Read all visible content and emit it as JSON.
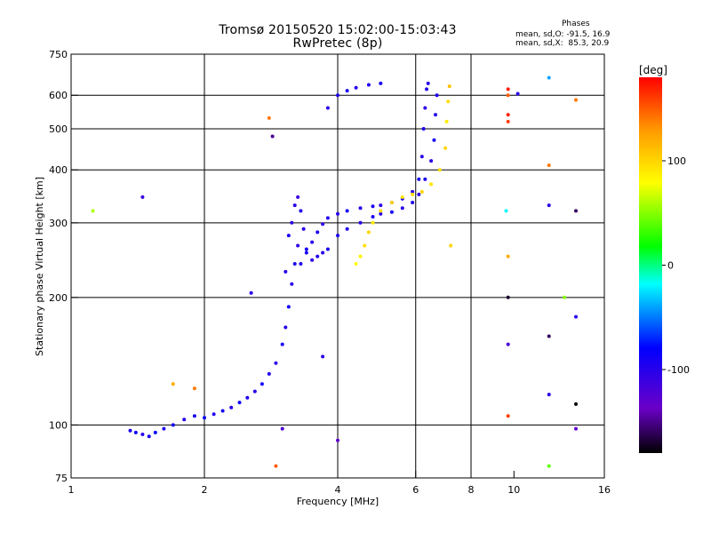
{
  "header": {
    "title": "Tromsø 20150520 15:02:00-15:03:43",
    "subtitle": "RwPretec (8p)",
    "phases_title": "Phases",
    "phases_o": "mean, sd,O: -91.5, 16.9",
    "phases_x": "mean, sd,X:  85.3, 20.9"
  },
  "chart_data": {
    "type": "scatter",
    "xlabel": "Frequency [MHz]",
    "ylabel": "Stationary phase Virtual Height [km]",
    "x_scale": "log2",
    "y_scale": "log",
    "xlim": [
      1,
      16
    ],
    "ylim": [
      75,
      750
    ],
    "xticks": [
      1,
      2,
      4,
      6,
      8,
      10,
      16
    ],
    "xticklabels": [
      "1",
      "2",
      "4",
      "6",
      "8",
      "10",
      "16"
    ],
    "yticks": [
      75,
      100,
      200,
      300,
      400,
      500,
      600,
      750
    ],
    "yticklabels": [
      "75",
      "100",
      "200",
      "300",
      "400",
      "500",
      "600",
      "750"
    ],
    "grid_x": [
      2,
      4,
      6,
      8
    ],
    "grid_y": [
      100,
      200,
      300,
      400,
      500,
      600
    ],
    "colorbar": {
      "label": "[deg]",
      "range": [
        -180,
        180
      ],
      "ticks": [
        100,
        0,
        -100
      ],
      "ticklabels": [
        "100",
        "0",
        "-100"
      ]
    },
    "series": [
      {
        "trace": "lower_rising",
        "points": [
          [
            1.36,
            97,
            -95
          ],
          [
            1.4,
            96,
            -85
          ],
          [
            1.45,
            95,
            -100
          ],
          [
            1.5,
            94,
            -90
          ],
          [
            1.55,
            96,
            -80
          ],
          [
            1.62,
            98,
            -95
          ],
          [
            1.7,
            100,
            -88
          ],
          [
            1.8,
            103,
            -100
          ],
          [
            1.9,
            105,
            -92
          ],
          [
            2.0,
            104,
            -86
          ],
          [
            2.1,
            106,
            -98
          ],
          [
            2.2,
            108,
            -90
          ],
          [
            2.3,
            110,
            -102
          ],
          [
            2.4,
            113,
            -88
          ],
          [
            2.5,
            116,
            -95
          ],
          [
            2.6,
            120,
            -100
          ],
          [
            2.7,
            125,
            -90
          ],
          [
            2.8,
            132,
            -96
          ],
          [
            2.9,
            140,
            -104
          ],
          [
            3.0,
            155,
            -92
          ],
          [
            3.05,
            170,
            -98
          ],
          [
            3.1,
            190,
            -88
          ],
          [
            3.15,
            215,
            -100
          ],
          [
            3.2,
            240,
            -94
          ],
          [
            3.25,
            265,
            -105
          ]
        ],
        "color_value": -95
      },
      {
        "trace": "spread_F_patch",
        "points": [
          [
            3.05,
            230,
            -100
          ],
          [
            3.1,
            280,
            -92
          ],
          [
            3.15,
            300,
            -104
          ],
          [
            3.2,
            330,
            -98
          ],
          [
            3.25,
            345,
            -110
          ],
          [
            3.3,
            320,
            -96
          ],
          [
            3.35,
            290,
            -100
          ],
          [
            3.4,
            260,
            -92
          ],
          [
            3.5,
            245,
            -104
          ],
          [
            3.6,
            250,
            -96
          ],
          [
            3.7,
            255,
            -100
          ],
          [
            3.8,
            260,
            -92
          ]
        ],
        "color_value": -100
      },
      {
        "trace": "O_main",
        "points": [
          [
            3.3,
            240,
            -95
          ],
          [
            3.4,
            255,
            -90
          ],
          [
            3.5,
            270,
            -100
          ],
          [
            3.6,
            285,
            -92
          ],
          [
            3.7,
            298,
            -105
          ],
          [
            3.8,
            308,
            -95
          ],
          [
            4.0,
            315,
            -100
          ],
          [
            4.2,
            320,
            -90
          ],
          [
            4.5,
            325,
            -98
          ],
          [
            4.8,
            328,
            -95
          ],
          [
            5.0,
            330,
            -102
          ],
          [
            5.3,
            335,
            -90
          ],
          [
            5.6,
            342,
            -96
          ],
          [
            5.9,
            355,
            -100
          ],
          [
            6.1,
            380,
            -92
          ],
          [
            6.2,
            430,
            -100
          ],
          [
            6.25,
            500,
            -95
          ],
          [
            6.3,
            560,
            -104
          ],
          [
            6.35,
            620,
            -96
          ],
          [
            6.4,
            640,
            -100
          ]
        ],
        "color_value": -95
      },
      {
        "trace": "O_second",
        "points": [
          [
            4.0,
            280,
            -92
          ],
          [
            4.2,
            290,
            -96
          ],
          [
            4.5,
            300,
            -100
          ],
          [
            4.8,
            310,
            -94
          ],
          [
            5.0,
            315,
            -98
          ],
          [
            5.3,
            318,
            -92
          ],
          [
            5.6,
            325,
            -100
          ],
          [
            5.9,
            335,
            -95
          ],
          [
            6.1,
            350,
            -104
          ],
          [
            6.3,
            380,
            -96
          ],
          [
            6.5,
            420,
            -100
          ],
          [
            6.6,
            470,
            -92
          ],
          [
            6.65,
            540,
            -98
          ],
          [
            6.7,
            600,
            -94
          ]
        ],
        "color_value": -95
      },
      {
        "trace": "X_trace",
        "points": [
          [
            4.4,
            240,
            80
          ],
          [
            4.5,
            250,
            85
          ],
          [
            4.6,
            265,
            95
          ],
          [
            4.7,
            285,
            100
          ],
          [
            4.8,
            300,
            90
          ],
          [
            5.0,
            320,
            95
          ],
          [
            5.3,
            335,
            100
          ],
          [
            5.6,
            345,
            90
          ],
          [
            5.9,
            350,
            95
          ],
          [
            6.2,
            355,
            100
          ],
          [
            6.5,
            370,
            92
          ],
          [
            6.8,
            400,
            96
          ],
          [
            7.0,
            450,
            100
          ],
          [
            7.05,
            520,
            88
          ],
          [
            7.1,
            580,
            95
          ],
          [
            7.15,
            630,
            110
          ]
        ],
        "color_value": 85
      },
      {
        "trace": "top_scattered",
        "points": [
          [
            3.8,
            560,
            -100
          ],
          [
            4.0,
            600,
            -95
          ],
          [
            4.2,
            615,
            -92
          ],
          [
            4.4,
            625,
            -100
          ],
          [
            4.7,
            635,
            -96
          ],
          [
            5.0,
            640,
            -90
          ]
        ],
        "color_value": -95
      },
      {
        "trace": "noise",
        "points": [
          [
            1.12,
            320,
            60
          ],
          [
            1.45,
            345,
            -110
          ],
          [
            1.7,
            125,
            120
          ],
          [
            1.9,
            122,
            140
          ],
          [
            2.55,
            205,
            -100
          ],
          [
            2.8,
            530,
            140
          ],
          [
            2.85,
            480,
            -150
          ],
          [
            2.9,
            80,
            150
          ],
          [
            3.0,
            98,
            -120
          ],
          [
            3.7,
            145,
            -100
          ],
          [
            4.0,
            92,
            -130
          ],
          [
            7.2,
            265,
            100
          ],
          [
            9.7,
            620,
            170
          ],
          [
            9.7,
            600,
            150
          ],
          [
            9.7,
            540,
            170
          ],
          [
            9.7,
            520,
            160
          ],
          [
            9.6,
            320,
            -20
          ],
          [
            9.7,
            250,
            120
          ],
          [
            9.7,
            200,
            -170
          ],
          [
            9.7,
            155,
            -120
          ],
          [
            9.7,
            105,
            160
          ],
          [
            10.2,
            605,
            -100
          ],
          [
            12.0,
            660,
            -40
          ],
          [
            12.0,
            410,
            140
          ],
          [
            12.0,
            330,
            -100
          ],
          [
            12.0,
            162,
            -160
          ],
          [
            12.0,
            118,
            -100
          ],
          [
            12.0,
            80,
            40
          ],
          [
            13.0,
            200,
            50
          ],
          [
            13.8,
            585,
            140
          ],
          [
            13.8,
            320,
            -160
          ],
          [
            13.8,
            180,
            -100
          ],
          [
            13.8,
            112,
            -180
          ],
          [
            13.8,
            98,
            -130
          ]
        ],
        "color_value": 0
      }
    ]
  }
}
